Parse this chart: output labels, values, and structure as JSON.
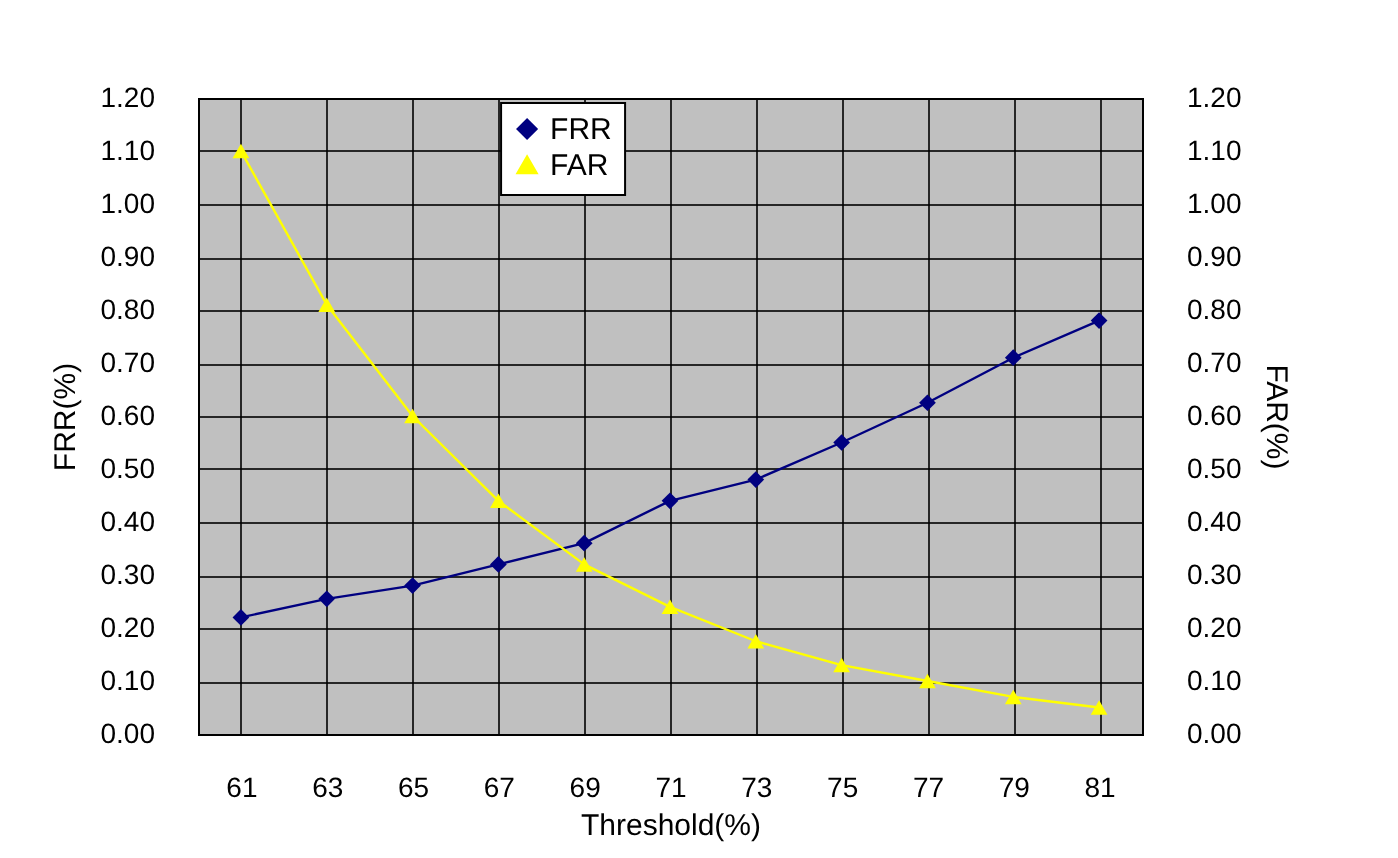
{
  "chart_data": {
    "type": "line",
    "xlabel": "Threshold(%)",
    "ylabel": "FRR(%)",
    "y2label": "FAR(%)",
    "categories": [
      "61",
      "63",
      "65",
      "67",
      "69",
      "71",
      "73",
      "75",
      "77",
      "79",
      "81"
    ],
    "series": [
      {
        "name": "FRR",
        "color": "#000080",
        "marker": "diamond",
        "values": [
          0.22,
          0.255,
          0.28,
          0.32,
          0.36,
          0.44,
          0.48,
          0.55,
          0.625,
          0.71,
          0.78
        ]
      },
      {
        "name": "FAR",
        "color": "#ffff00",
        "marker": "triangle",
        "axis": "y2",
        "values": [
          1.1,
          0.81,
          0.6,
          0.44,
          0.32,
          0.24,
          0.175,
          0.13,
          0.1,
          0.07,
          0.05
        ]
      }
    ],
    "ylim": [
      0,
      1.2
    ],
    "yticks": [
      {
        "value": 0,
        "label": "0.00"
      },
      {
        "value": 0.1,
        "label": "0.10"
      },
      {
        "value": 0.2,
        "label": "0.20"
      },
      {
        "value": 0.3,
        "label": "0.30"
      },
      {
        "value": 0.4,
        "label": "0.40"
      },
      {
        "value": 0.5,
        "label": "0.50"
      },
      {
        "value": 0.6,
        "label": "0.60"
      },
      {
        "value": 0.7,
        "label": "0.70"
      },
      {
        "value": 0.8,
        "label": "0.80"
      },
      {
        "value": 0.9,
        "label": "0.90"
      },
      {
        "value": 1.0,
        "label": "1.00"
      },
      {
        "value": 1.1,
        "label": "1.10"
      },
      {
        "value": 1.2,
        "label": "1.20"
      }
    ],
    "y2lim": [
      0,
      1.2
    ],
    "y2ticks": [
      {
        "value": 0,
        "label": "0.00"
      },
      {
        "value": 0.1,
        "label": "0.10"
      },
      {
        "value": 0.2,
        "label": "0.20"
      },
      {
        "value": 0.3,
        "label": "0.30"
      },
      {
        "value": 0.4,
        "label": "0.40"
      },
      {
        "value": 0.5,
        "label": "0.50"
      },
      {
        "value": 0.6,
        "label": "0.60"
      },
      {
        "value": 0.7,
        "label": "0.70"
      },
      {
        "value": 0.8,
        "label": "0.80"
      },
      {
        "value": 0.9,
        "label": "0.90"
      },
      {
        "value": 1.0,
        "label": "1.00"
      },
      {
        "value": 1.1,
        "label": "1.10"
      },
      {
        "value": 1.2,
        "label": "1.20"
      }
    ],
    "grid": true,
    "legend": "top",
    "line_style": "solid"
  }
}
